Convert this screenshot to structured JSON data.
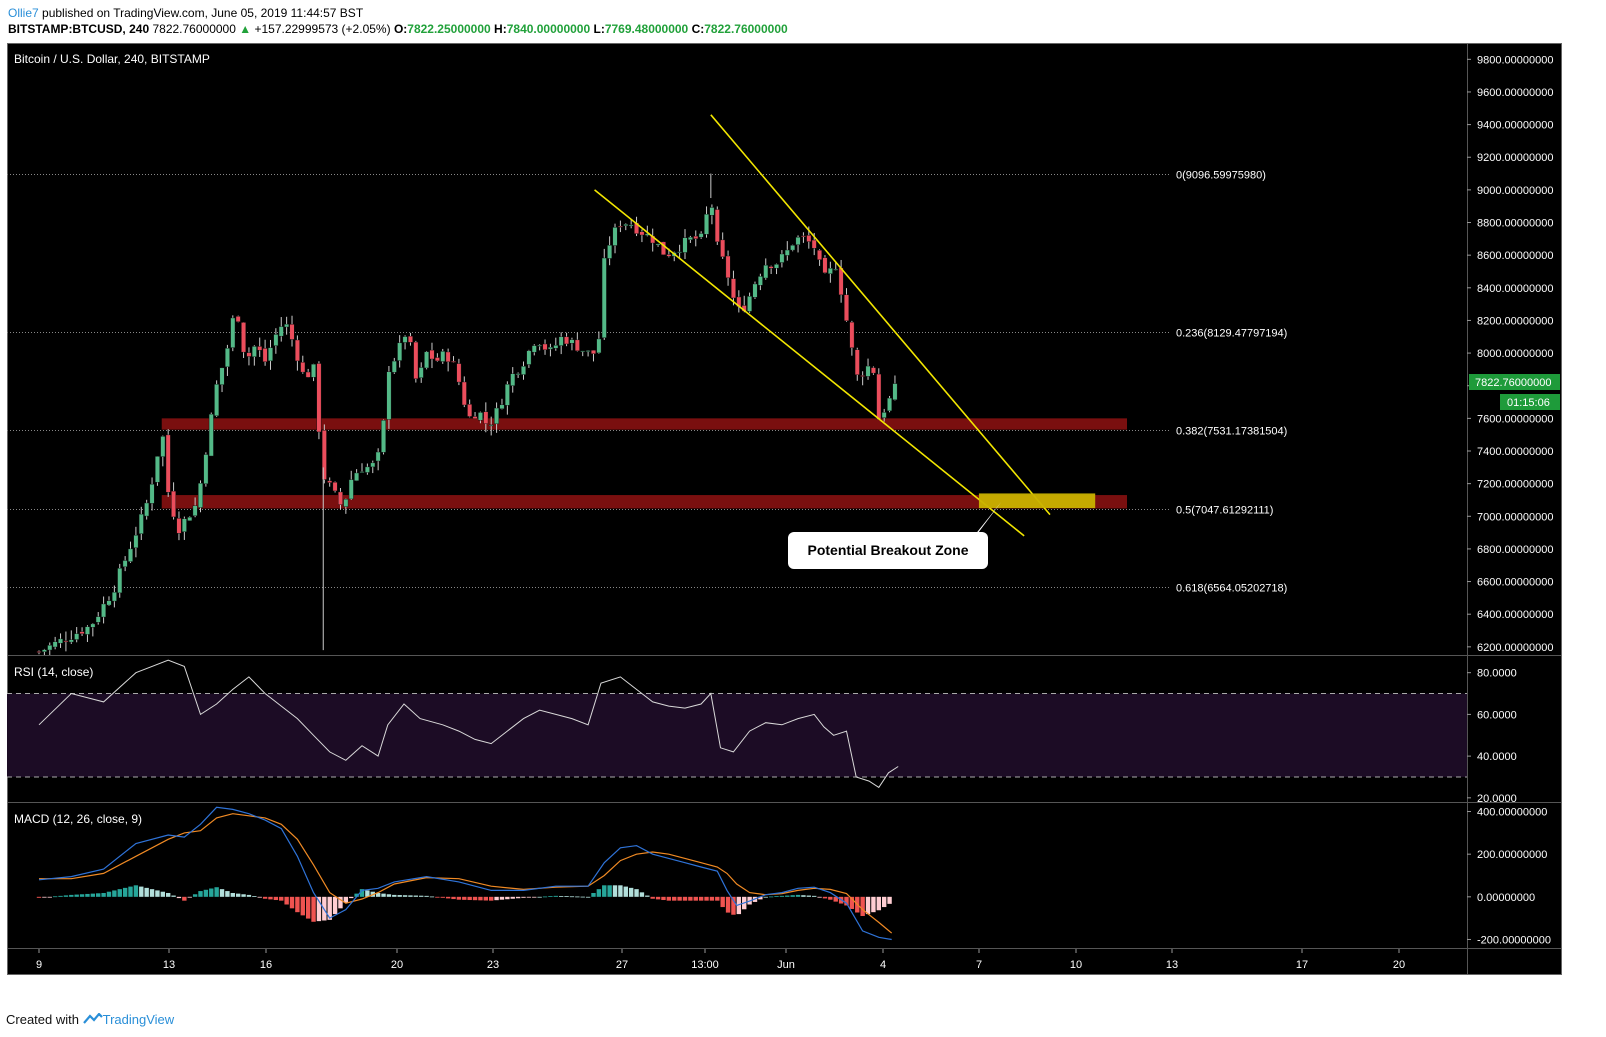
{
  "header": {
    "author": "Ollie7",
    "published_text": "published on TradingView.com, June 05, 2019 11:44:57 BST",
    "symbol": "BITSTAMP:BTCUSD, 240",
    "last": "7822.76000000",
    "change": "+157.22999573 (+2.05%)",
    "o_label": "O:",
    "o_value": "7822.25000000",
    "h_label": "H:",
    "h_value": "7840.00000000",
    "l_label": "L:",
    "l_value": "7769.48000000",
    "c_label": "C:",
    "c_value": "7822.76000000"
  },
  "footer": {
    "created_with": "Created with",
    "brand": "TradingView"
  },
  "colors": {
    "background": "#000000",
    "up": "#53b987",
    "down": "#eb4d5c",
    "trendline": "#f2e600",
    "zone": "#7a0f0f",
    "breakout": "#c9b200",
    "rsi": "#d9d9d9",
    "rsi_band": "#1c0c25",
    "macd": "#2f73d8",
    "signal": "#f08a24",
    "hist_pos": "#26a69a",
    "hist_neg": "#ef5350",
    "price_tag": "#1e9b3a"
  },
  "chart_data": [
    {
      "type": "candlestick",
      "title": "Bitcoin / U.S. Dollar, 240, BITSTAMP",
      "ylim": [
        6150,
        9900
      ],
      "y_ticks": [
        "9800.00000000",
        "9600.00000000",
        "9400.00000000",
        "9200.00000000",
        "9000.00000000",
        "8800.00000000",
        "8600.00000000",
        "8400.00000000",
        "8200.00000000",
        "8000.00000000",
        "7800.00000000",
        "7600.00000000",
        "7400.00000000",
        "7200.00000000",
        "7000.00000000",
        "6800.00000000",
        "6600.00000000",
        "6400.00000000",
        "6200.00000000"
      ],
      "x_ticks": [
        "9",
        "13",
        "16",
        "20",
        "23",
        "27",
        "13:00",
        "Jun",
        "4",
        "7",
        "10",
        "13",
        "17",
        "20"
      ],
      "last_price_label": "7822.76000000",
      "countdown_label": "01:15:06",
      "last_price": 7822.76,
      "fib_levels": [
        {
          "label": "0(9096.59975980)",
          "value": 9096.6
        },
        {
          "label": "0.236(8129.47797194)",
          "value": 8129.48
        },
        {
          "label": "0.382(7531.17381504)",
          "value": 7531.17
        },
        {
          "label": "0.5(7047.61292111)",
          "value": 7047.61
        },
        {
          "label": "0.618(6564.05202718)",
          "value": 6564.05
        }
      ],
      "zones": [
        [
          7531,
          7600
        ],
        [
          7048,
          7130
        ]
      ],
      "breakout_zone": {
        "label": "Potential Breakout Zone",
        "low": 7050,
        "high": 7140
      },
      "close_path": [
        [
          9.0,
          6170
        ],
        [
          9.8,
          6250
        ],
        [
          10.6,
          6330
        ],
        [
          11.3,
          6550
        ],
        [
          11.8,
          6800
        ],
        [
          12.3,
          7050
        ],
        [
          12.6,
          7300
        ],
        [
          12.8,
          7550
        ],
        [
          13.0,
          7150
        ],
        [
          13.3,
          6920
        ],
        [
          13.6,
          7000
        ],
        [
          13.9,
          7080
        ],
        [
          14.2,
          7450
        ],
        [
          14.5,
          7800
        ],
        [
          14.8,
          8000
        ],
        [
          15.1,
          8300
        ],
        [
          15.4,
          7950
        ],
        [
          15.7,
          8050
        ],
        [
          16.0,
          7950
        ],
        [
          16.3,
          8100
        ],
        [
          16.6,
          8200
        ],
        [
          16.9,
          8050
        ],
        [
          17.2,
          7850
        ],
        [
          17.5,
          7900
        ],
        [
          17.8,
          7250
        ],
        [
          18.1,
          7150
        ],
        [
          18.4,
          7050
        ],
        [
          18.7,
          7250
        ],
        [
          19.0,
          7300
        ],
        [
          19.3,
          7300
        ],
        [
          19.6,
          7400
        ],
        [
          19.8,
          7900
        ],
        [
          20.1,
          8000
        ],
        [
          20.4,
          8150
        ],
        [
          20.7,
          7800
        ],
        [
          21.0,
          8000
        ],
        [
          21.3,
          7950
        ],
        [
          21.6,
          8000
        ],
        [
          21.9,
          7900
        ],
        [
          22.3,
          7600
        ],
        [
          22.6,
          7650
        ],
        [
          22.9,
          7550
        ],
        [
          23.2,
          7650
        ],
        [
          23.6,
          7850
        ],
        [
          24.0,
          7950
        ],
        [
          24.4,
          8100
        ],
        [
          24.8,
          8000
        ],
        [
          25.2,
          8100
        ],
        [
          25.6,
          8050
        ],
        [
          26.0,
          8000
        ],
        [
          26.3,
          8000
        ],
        [
          26.5,
          8550
        ],
        [
          26.7,
          8700
        ],
        [
          27.0,
          8800
        ],
        [
          27.3,
          8800
        ],
        [
          27.6,
          8750
        ],
        [
          28.0,
          8700
        ],
        [
          28.4,
          8600
        ],
        [
          28.8,
          8650
        ],
        [
          29.2,
          8700
        ],
        [
          29.5,
          8700
        ],
        [
          29.8,
          8950
        ],
        [
          30.0,
          8650
        ],
        [
          30.3,
          8500
        ],
        [
          30.6,
          8250
        ],
        [
          30.9,
          8300
        ],
        [
          31.2,
          8450
        ],
        [
          31.5,
          8550
        ],
        [
          31.8,
          8550
        ],
        [
          32.1,
          8600
        ],
        [
          32.4,
          8700
        ],
        [
          32.7,
          8700
        ],
        [
          33.0,
          8650
        ],
        [
          33.3,
          8450
        ],
        [
          33.5,
          8500
        ],
        [
          33.7,
          8550
        ],
        [
          33.9,
          8300
        ],
        [
          34.1,
          8100
        ],
        [
          34.3,
          7850
        ],
        [
          34.6,
          7900
        ],
        [
          34.8,
          7950
        ],
        [
          35.0,
          7600
        ],
        [
          35.3,
          7700
        ],
        [
          35.6,
          7820
        ]
      ]
    },
    {
      "type": "line",
      "title": "RSI (14, close)",
      "ylim": [
        18,
        88
      ],
      "y_ticks": [
        "80.0000",
        "60.0000",
        "40.0000",
        "20.0000"
      ],
      "band": [
        30,
        70
      ],
      "series": [
        {
          "values": [
            [
              9,
              55
            ],
            [
              10,
              70
            ],
            [
              11,
              66
            ],
            [
              12,
              80
            ],
            [
              13,
              86
            ],
            [
              13.5,
              83
            ],
            [
              14,
              60
            ],
            [
              14.5,
              65
            ],
            [
              15,
              72
            ],
            [
              15.5,
              78
            ],
            [
              16,
              70
            ],
            [
              16.5,
              64
            ],
            [
              17,
              58
            ],
            [
              17.5,
              50
            ],
            [
              18,
              42
            ],
            [
              18.5,
              38
            ],
            [
              19,
              45
            ],
            [
              19.5,
              40
            ],
            [
              19.8,
              55
            ],
            [
              20.3,
              65
            ],
            [
              20.8,
              58
            ],
            [
              21.5,
              55
            ],
            [
              22,
              52
            ],
            [
              22.5,
              48
            ],
            [
              23,
              46
            ],
            [
              23.5,
              52
            ],
            [
              24,
              58
            ],
            [
              24.5,
              62
            ],
            [
              25,
              60
            ],
            [
              25.5,
              58
            ],
            [
              26,
              55
            ],
            [
              26.4,
              75
            ],
            [
              27,
              78
            ],
            [
              27.5,
              72
            ],
            [
              28,
              66
            ],
            [
              28.5,
              64
            ],
            [
              29,
              63
            ],
            [
              29.5,
              65
            ],
            [
              29.8,
              70
            ],
            [
              30.1,
              44
            ],
            [
              30.5,
              42
            ],
            [
              31,
              52
            ],
            [
              31.5,
              56
            ],
            [
              32,
              55
            ],
            [
              32.5,
              58
            ],
            [
              33,
              60
            ],
            [
              33.3,
              54
            ],
            [
              33.6,
              50
            ],
            [
              34,
              52
            ],
            [
              34.3,
              30
            ],
            [
              34.7,
              28
            ],
            [
              35,
              25
            ],
            [
              35.3,
              32
            ],
            [
              35.6,
              35
            ]
          ]
        }
      ]
    },
    {
      "type": "bar+line",
      "title": "MACD (12, 26, close, 9)",
      "ylim": [
        -240,
        440
      ],
      "y_ticks": [
        "400.00000000",
        "200.00000000",
        "0.00000000",
        "-200.00000000"
      ],
      "series": [
        {
          "name": "macd",
          "values": [
            [
              9,
              80
            ],
            [
              10,
              95
            ],
            [
              11,
              130
            ],
            [
              12,
              250
            ],
            [
              13,
              290
            ],
            [
              13.5,
              280
            ],
            [
              14,
              340
            ],
            [
              14.5,
              420
            ],
            [
              15,
              410
            ],
            [
              15.5,
              390
            ],
            [
              16,
              360
            ],
            [
              16.5,
              320
            ],
            [
              17,
              190
            ],
            [
              17.5,
              20
            ],
            [
              18,
              -100
            ],
            [
              18.5,
              -60
            ],
            [
              19,
              30
            ],
            [
              19.5,
              40
            ],
            [
              20,
              70
            ],
            [
              21,
              95
            ],
            [
              22,
              70
            ],
            [
              23,
              30
            ],
            [
              24,
              30
            ],
            [
              25,
              50
            ],
            [
              26,
              50
            ],
            [
              26.5,
              160
            ],
            [
              27,
              230
            ],
            [
              27.5,
              240
            ],
            [
              28,
              200
            ],
            [
              28.5,
              180
            ],
            [
              29,
              160
            ],
            [
              29.5,
              140
            ],
            [
              30,
              120
            ],
            [
              30.3,
              30
            ],
            [
              30.6,
              -40
            ],
            [
              31,
              -20
            ],
            [
              31.5,
              10
            ],
            [
              32,
              20
            ],
            [
              32.5,
              40
            ],
            [
              33,
              45
            ],
            [
              33.5,
              20
            ],
            [
              34,
              -30
            ],
            [
              34.5,
              -160
            ],
            [
              35,
              -190
            ],
            [
              35.4,
              -200
            ]
          ]
        },
        {
          "name": "signal",
          "values": [
            [
              9,
              85
            ],
            [
              10,
              85
            ],
            [
              11,
              110
            ],
            [
              12,
              190
            ],
            [
              13,
              270
            ],
            [
              13.5,
              300
            ],
            [
              14,
              310
            ],
            [
              14.5,
              370
            ],
            [
              15,
              390
            ],
            [
              15.5,
              380
            ],
            [
              16,
              370
            ],
            [
              16.5,
              340
            ],
            [
              17,
              270
            ],
            [
              17.5,
              150
            ],
            [
              18,
              20
            ],
            [
              18.5,
              -30
            ],
            [
              19,
              -10
            ],
            [
              19.5,
              20
            ],
            [
              20,
              60
            ],
            [
              21,
              90
            ],
            [
              22,
              85
            ],
            [
              23,
              50
            ],
            [
              24,
              35
            ],
            [
              25,
              45
            ],
            [
              26,
              50
            ],
            [
              26.5,
              100
            ],
            [
              27,
              170
            ],
            [
              27.5,
              200
            ],
            [
              28,
              210
            ],
            [
              28.5,
              200
            ],
            [
              29,
              180
            ],
            [
              29.5,
              160
            ],
            [
              30,
              140
            ],
            [
              30.3,
              110
            ],
            [
              30.6,
              60
            ],
            [
              31,
              20
            ],
            [
              31.5,
              10
            ],
            [
              32,
              15
            ],
            [
              32.5,
              30
            ],
            [
              33,
              40
            ],
            [
              33.5,
              35
            ],
            [
              34,
              15
            ],
            [
              34.5,
              -60
            ],
            [
              35,
              -120
            ],
            [
              35.4,
              -170
            ]
          ]
        }
      ]
    }
  ]
}
